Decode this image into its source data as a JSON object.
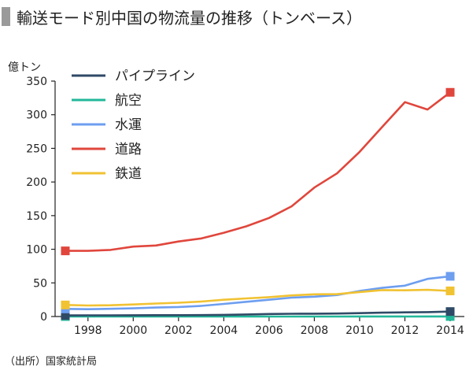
{
  "title": "輸送モード別中国の物流量の推移（トンベース）",
  "source": "（出所）国家統計局",
  "chart_data": {
    "type": "line",
    "title": "輸送モード別中国の物流量の推移（トンベース）",
    "ylabel": "億トン",
    "xlabel": "",
    "xlim": [
      1997,
      2014
    ],
    "ylim": [
      0,
      350
    ],
    "x_ticks": [
      1998,
      2000,
      2002,
      2004,
      2006,
      2008,
      2010,
      2012,
      2014
    ],
    "y_ticks": [
      0,
      50,
      100,
      150,
      200,
      250,
      300,
      350
    ],
    "grid": false,
    "legend_position": "top-left",
    "x": [
      1997,
      1998,
      1999,
      2000,
      2001,
      2002,
      2003,
      2004,
      2005,
      2006,
      2007,
      2008,
      2009,
      2010,
      2011,
      2012,
      2013,
      2014
    ],
    "series": [
      {
        "name": "パイプライン",
        "color": "#2f4a66",
        "values": [
          1.6,
          1.7,
          1.8,
          1.9,
          2.0,
          2.0,
          2.1,
          2.4,
          3.1,
          3.7,
          4.1,
          4.2,
          4.4,
          5.0,
          5.7,
          6.2,
          6.5,
          7.4
        ]
      },
      {
        "name": "航空",
        "color": "#22b89a",
        "values": [
          0.01,
          0.01,
          0.02,
          0.02,
          0.02,
          0.02,
          0.02,
          0.03,
          0.03,
          0.03,
          0.04,
          0.04,
          0.04,
          0.06,
          0.06,
          0.05,
          0.06,
          0.06
        ]
      },
      {
        "name": "水運",
        "color": "#6d9ef0",
        "values": [
          11.3,
          10.9,
          11.5,
          12.2,
          13.3,
          14.2,
          15.8,
          18.7,
          21.9,
          24.9,
          28.1,
          29.5,
          31.9,
          37.9,
          42.6,
          45.9,
          56.0,
          59.8
        ]
      },
      {
        "name": "道路",
        "color": "#e0463c",
        "values": [
          97.6,
          97.6,
          99.0,
          103.9,
          105.6,
          111.6,
          116.0,
          124.5,
          134.2,
          146.6,
          163.9,
          191.7,
          212.8,
          244.8,
          282.0,
          318.8,
          307.7,
          333.3
        ]
      },
      {
        "name": "鉄道",
        "color": "#f1c232",
        "values": [
          17.2,
          16.4,
          16.7,
          17.9,
          19.3,
          20.5,
          22.2,
          24.9,
          26.9,
          28.8,
          31.4,
          33.0,
          33.3,
          36.4,
          39.3,
          39.0,
          39.7,
          38.1
        ]
      }
    ]
  }
}
